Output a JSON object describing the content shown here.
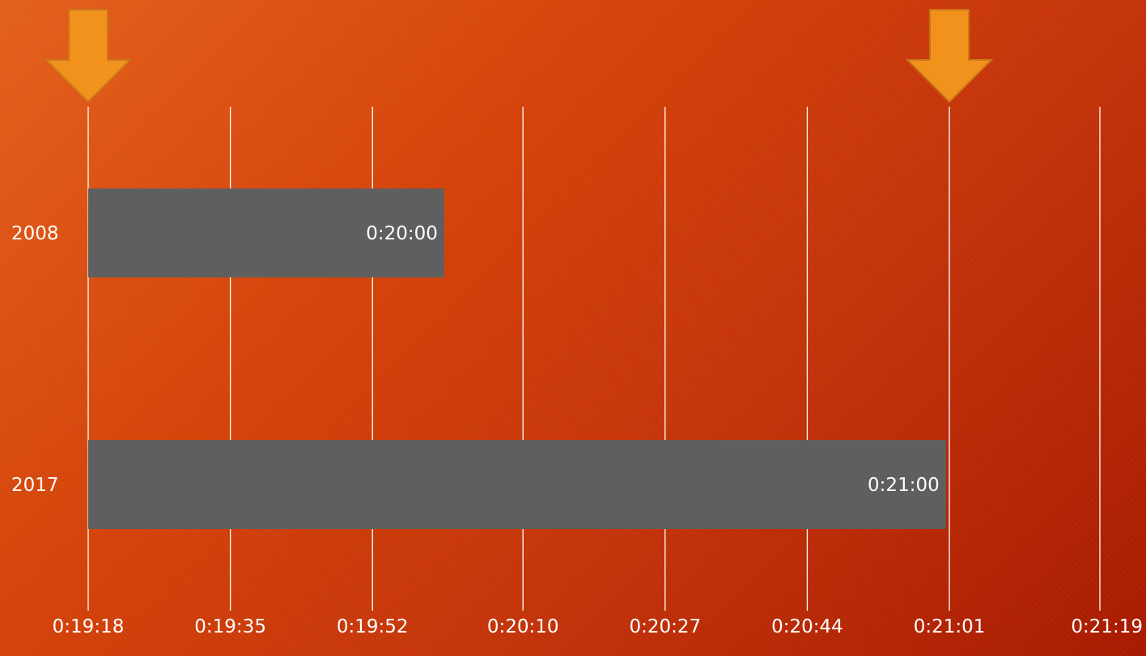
{
  "chart_data": {
    "type": "bar",
    "orientation": "horizontal",
    "categories": [
      "2008",
      "2017"
    ],
    "values": [
      "0:20:00",
      "0:21:00"
    ],
    "values_seconds": [
      1200,
      1260
    ],
    "data_labels": [
      "0:20:00",
      "0:21:00"
    ],
    "x_ticks": [
      "0:19:18",
      "0:19:35",
      "0:19:52",
      "0:20:10",
      "0:20:27",
      "0:20:44",
      "0:21:01",
      "0:21:19"
    ],
    "x_ticks_seconds": [
      1158,
      1175,
      1192,
      1210,
      1227,
      1244,
      1261,
      1279
    ],
    "xlim_seconds": [
      1158,
      1279
    ],
    "title": "",
    "xlabel": "",
    "ylabel": "",
    "grid": "vertical",
    "legend": "none",
    "markers": [
      {
        "type": "down-arrow",
        "at": "0:19:18",
        "at_seconds": 1158
      },
      {
        "type": "down-arrow",
        "at": "0:21:01",
        "at_seconds": 1261
      }
    ],
    "colors": {
      "bar": "#5f5f5f",
      "gridline": "#ffffff",
      "text": "#ffffff",
      "arrow_fill": "#f0921c",
      "arrow_stroke": "#c9761a",
      "background_start": "#e3601c",
      "background_end": "#a81a00"
    }
  }
}
